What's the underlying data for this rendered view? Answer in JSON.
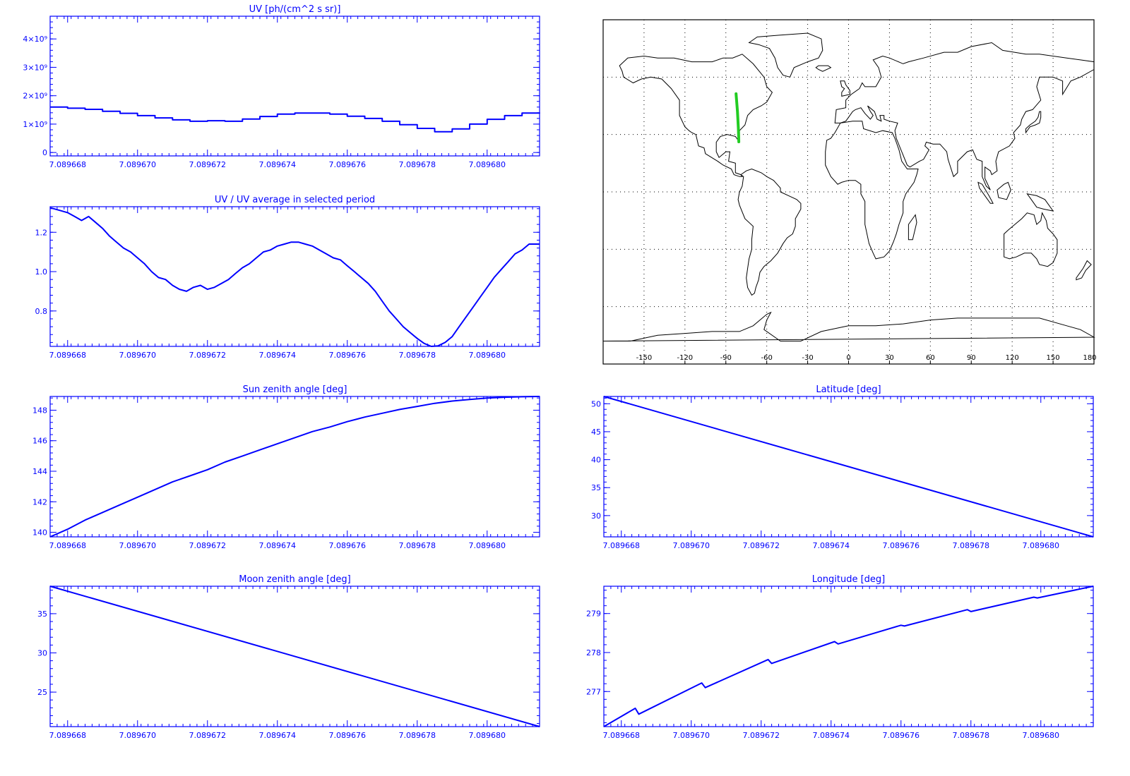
{
  "colors": {
    "axis": "#0000ff",
    "series": "#0000ff",
    "map_coast": "#000000",
    "map_grid": "#000000",
    "map_track": "#22cc22",
    "background": "#ffffff"
  },
  "chart_data": [
    {
      "type": "line",
      "title": "UV [ph/(cm^2 s sr)]",
      "x_tick_labels": [
        "7.089668",
        "7.089670",
        "7.089672",
        "7.089674",
        "7.089676",
        "7.089678",
        "7.089680"
      ],
      "x_tick_values": [
        7.089668,
        7.08967,
        7.089672,
        7.089674,
        7.089676,
        7.089678,
        7.08968
      ],
      "y_tick_labels": [
        "0",
        "1×10⁹",
        "2×10⁹",
        "3×10⁹",
        "4×10⁹"
      ],
      "y_tick_values": [
        0,
        1000000000.0,
        2000000000.0,
        3000000000.0,
        4000000000.0
      ],
      "xlim": [
        7.0896675,
        7.0896815
      ],
      "ylim": [
        -120000000.0,
        4800000000.0
      ],
      "series": [
        {
          "step": true,
          "x": [
            7.0896675,
            7.089668,
            7.0896685,
            7.089669,
            7.0896695,
            7.08967,
            7.0896705,
            7.089671,
            7.0896715,
            7.089672,
            7.0896725,
            7.089673,
            7.0896735,
            7.089674,
            7.0896745,
            7.089675,
            7.0896755,
            7.089676,
            7.0896765,
            7.089677,
            7.0896775,
            7.089678,
            7.0896785,
            7.089679,
            7.0896795,
            7.08968,
            7.0896805,
            7.089681,
            7.0896815
          ],
          "y": [
            1600000000.0,
            1560000000.0,
            1520000000.0,
            1450000000.0,
            1380000000.0,
            1300000000.0,
            1220000000.0,
            1150000000.0,
            1100000000.0,
            1120000000.0,
            1100000000.0,
            1180000000.0,
            1270000000.0,
            1350000000.0,
            1390000000.0,
            1390000000.0,
            1350000000.0,
            1280000000.0,
            1200000000.0,
            1100000000.0,
            980000000.0,
            850000000.0,
            730000000.0,
            830000000.0,
            1000000000.0,
            1170000000.0,
            1300000000.0,
            1390000000.0,
            1380000000.0
          ]
        }
      ]
    },
    {
      "type": "line",
      "title": "UV / UV average in selected period",
      "x_tick_labels": [
        "7.089668",
        "7.089670",
        "7.089672",
        "7.089674",
        "7.089676",
        "7.089678",
        "7.089680"
      ],
      "x_tick_values": [
        7.089668,
        7.08967,
        7.089672,
        7.089674,
        7.089676,
        7.089678,
        7.08968
      ],
      "y_tick_labels": [
        "0.8",
        "1.0",
        "1.2"
      ],
      "y_tick_values": [
        0.8,
        1.0,
        1.2
      ],
      "xlim": [
        7.0896675,
        7.0896815
      ],
      "ylim": [
        0.62,
        1.33
      ],
      "series": [
        {
          "x": [
            7.0896675,
            7.0896678,
            7.089668,
            7.0896682,
            7.0896684,
            7.0896686,
            7.0896688,
            7.089669,
            7.0896692,
            7.0896694,
            7.0896696,
            7.0896698,
            7.08967,
            7.0896702,
            7.0896704,
            7.0896706,
            7.0896708,
            7.089671,
            7.0896712,
            7.0896714,
            7.0896716,
            7.0896718,
            7.089672,
            7.0896722,
            7.0896724,
            7.0896726,
            7.0896728,
            7.089673,
            7.0896732,
            7.0896734,
            7.0896736,
            7.0896738,
            7.089674,
            7.0896742,
            7.0896744,
            7.0896746,
            7.0896748,
            7.089675,
            7.0896752,
            7.0896754,
            7.0896756,
            7.0896758,
            7.089676,
            7.0896762,
            7.0896764,
            7.0896766,
            7.0896768,
            7.089677,
            7.0896772,
            7.0896774,
            7.0896776,
            7.0896778,
            7.089678,
            7.0896782,
            7.0896784,
            7.0896786,
            7.0896788,
            7.089679,
            7.0896792,
            7.0896794,
            7.0896796,
            7.0896798,
            7.08968,
            7.0896802,
            7.0896804,
            7.0896806,
            7.0896808,
            7.089681,
            7.0896812,
            7.0896815
          ],
          "y": [
            1.325,
            1.31,
            1.3,
            1.28,
            1.26,
            1.28,
            1.25,
            1.22,
            1.18,
            1.15,
            1.12,
            1.1,
            1.07,
            1.04,
            1.0,
            0.97,
            0.96,
            0.93,
            0.91,
            0.9,
            0.92,
            0.93,
            0.91,
            0.92,
            0.94,
            0.96,
            0.99,
            1.02,
            1.04,
            1.07,
            1.1,
            1.11,
            1.13,
            1.14,
            1.15,
            1.15,
            1.14,
            1.13,
            1.11,
            1.09,
            1.07,
            1.06,
            1.03,
            1.0,
            0.97,
            0.94,
            0.9,
            0.85,
            0.8,
            0.76,
            0.72,
            0.69,
            0.66,
            0.635,
            0.62,
            0.623,
            0.64,
            0.67,
            0.72,
            0.77,
            0.82,
            0.87,
            0.92,
            0.97,
            1.01,
            1.05,
            1.09,
            1.11,
            1.14,
            1.14
          ]
        }
      ]
    },
    {
      "type": "line",
      "title": "Sun zenith angle [deg]",
      "x_tick_labels": [
        "7.089668",
        "7.089670",
        "7.089672",
        "7.089674",
        "7.089676",
        "7.089678",
        "7.089680"
      ],
      "x_tick_values": [
        7.089668,
        7.08967,
        7.089672,
        7.089674,
        7.089676,
        7.089678,
        7.08968
      ],
      "y_tick_labels": [
        "140",
        "142",
        "144",
        "146",
        "148"
      ],
      "y_tick_values": [
        140,
        142,
        144,
        146,
        148
      ],
      "xlim": [
        7.0896675,
        7.0896815
      ],
      "ylim": [
        139.7,
        148.9
      ],
      "series": [
        {
          "x": [
            7.0896675,
            7.089668,
            7.0896685,
            7.089669,
            7.0896695,
            7.08967,
            7.0896705,
            7.089671,
            7.0896715,
            7.089672,
            7.0896725,
            7.089673,
            7.0896735,
            7.089674,
            7.0896745,
            7.089675,
            7.0896755,
            7.089676,
            7.0896765,
            7.089677,
            7.0896775,
            7.089678,
            7.0896785,
            7.089679,
            7.0896795,
            7.08968,
            7.0896805,
            7.089681,
            7.0896815
          ],
          "y": [
            139.7,
            140.2,
            140.8,
            141.3,
            141.8,
            142.3,
            142.8,
            143.3,
            143.7,
            144.1,
            144.6,
            145.0,
            145.4,
            145.8,
            146.2,
            146.6,
            146.9,
            147.25,
            147.55,
            147.8,
            148.05,
            148.25,
            148.45,
            148.6,
            148.7,
            148.8,
            148.85,
            148.88,
            148.9
          ]
        }
      ]
    },
    {
      "type": "line",
      "title": "Latitude [deg]",
      "x_tick_labels": [
        "7.089668",
        "7.089670",
        "7.089672",
        "7.089674",
        "7.089676",
        "7.089678",
        "7.089680"
      ],
      "x_tick_values": [
        7.089668,
        7.08967,
        7.089672,
        7.089674,
        7.089676,
        7.089678,
        7.08968
      ],
      "y_tick_labels": [
        "30",
        "35",
        "40",
        "45",
        "50"
      ],
      "y_tick_values": [
        30,
        35,
        40,
        45,
        50
      ],
      "xlim": [
        7.0896675,
        7.0896815
      ],
      "ylim": [
        26.2,
        51.3
      ],
      "series": [
        {
          "x": [
            7.0896675,
            7.0896815
          ],
          "y": [
            51.3,
            26.2
          ]
        }
      ]
    },
    {
      "type": "line",
      "title": "Moon zenith angle [deg]",
      "x_tick_labels": [
        "7.089668",
        "7.089670",
        "7.089672",
        "7.089674",
        "7.089676",
        "7.089678",
        "7.089680"
      ],
      "x_tick_values": [
        7.089668,
        7.08967,
        7.089672,
        7.089674,
        7.089676,
        7.089678,
        7.08968
      ],
      "y_tick_labels": [
        "25",
        "30",
        "35"
      ],
      "y_tick_values": [
        25,
        30,
        35
      ],
      "xlim": [
        7.0896675,
        7.0896815
      ],
      "ylim": [
        20.6,
        38.5
      ],
      "series": [
        {
          "x": [
            7.0896675,
            7.0896815
          ],
          "y": [
            38.5,
            20.6
          ]
        }
      ]
    },
    {
      "type": "line",
      "title": "Longitude [deg]",
      "x_tick_labels": [
        "7.089668",
        "7.089670",
        "7.089672",
        "7.089674",
        "7.089676",
        "7.089678",
        "7.089680"
      ],
      "x_tick_values": [
        7.089668,
        7.08967,
        7.089672,
        7.089674,
        7.089676,
        7.089678,
        7.08968
      ],
      "y_tick_labels": [
        "277",
        "278",
        "279"
      ],
      "y_tick_values": [
        277,
        278,
        279
      ],
      "xlim": [
        7.0896675,
        7.0896815
      ],
      "ylim": [
        276.1,
        279.7
      ],
      "series": [
        {
          "x": [
            7.0896675,
            7.0896684,
            7.0896685,
            7.0896703,
            7.0896704,
            7.0896722,
            7.0896723,
            7.0896741,
            7.0896742,
            7.089676,
            7.0896761,
            7.0896779,
            7.089678,
            7.0896798,
            7.0896799,
            7.0896815
          ],
          "y": [
            276.1,
            276.57,
            276.42,
            277.22,
            277.1,
            277.82,
            277.72,
            278.28,
            278.22,
            278.7,
            278.68,
            279.1,
            279.05,
            279.42,
            279.4,
            279.7
          ]
        }
      ]
    },
    {
      "type": "map",
      "x_tick_labels": [
        "-150",
        "-120",
        "-90",
        "-60",
        "-30",
        "0",
        "30",
        "60",
        "90",
        "120",
        "150",
        "180"
      ],
      "x_tick_values": [
        -150,
        -120,
        -90,
        -60,
        -30,
        0,
        30,
        60,
        90,
        120,
        150,
        180
      ],
      "xlim": [
        -180,
        180
      ],
      "ylim": [
        -90,
        90
      ],
      "grid": true,
      "track": {
        "lon": [
          -82.5,
          -81.5,
          -80.8,
          -80.5
        ],
        "lat": [
          51.3,
          42.0,
          33.0,
          26.2
        ]
      }
    }
  ]
}
